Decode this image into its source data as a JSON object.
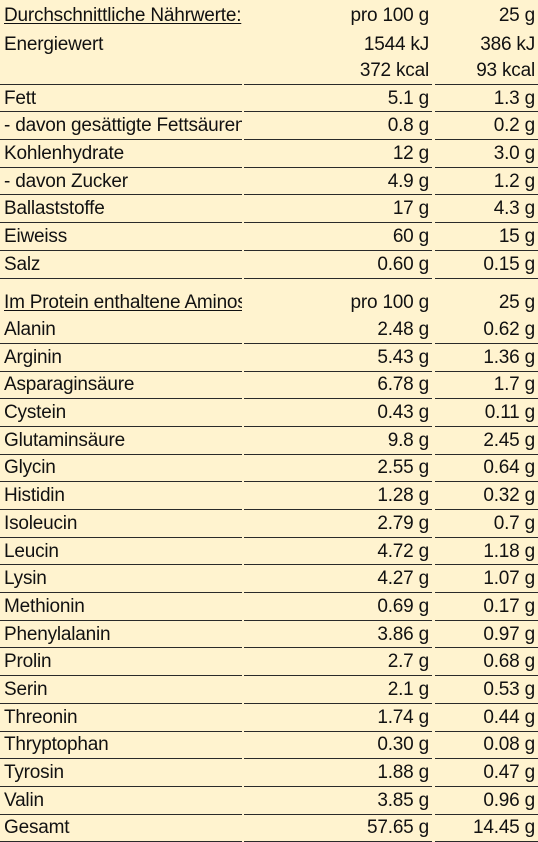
{
  "nutrition": {
    "header": {
      "label": "Durchschnittliche Nährwerte:",
      "col100": "pro 100 g",
      "col25": "25 g"
    },
    "energy": {
      "label": "Energiewert",
      "kj100": "1544 kJ",
      "kj25": "386 kJ",
      "kcal100": "372 kcal",
      "kcal25": "93 kcal"
    },
    "rows": [
      {
        "label": "Fett",
        "v100": "5.1 g",
        "v25": "1.3 g"
      },
      {
        "label": "- davon gesättigte Fettsäuren",
        "v100": "0.8 g",
        "v25": "0.2 g"
      },
      {
        "label": "Kohlenhydrate",
        "v100": "12 g",
        "v25": "3.0 g"
      },
      {
        "label": "- davon Zucker",
        "v100": "4.9 g",
        "v25": "1.2 g"
      },
      {
        "label": "Ballaststoffe",
        "v100": "17 g",
        "v25": "4.3 g"
      },
      {
        "label": "Eiweiss",
        "v100": "60 g",
        "v25": "15 g"
      },
      {
        "label": "Salz",
        "v100": "0.60 g",
        "v25": "0.15 g"
      }
    ]
  },
  "amino": {
    "header": {
      "label": "Im Protein enthaltene Aminosäuren:",
      "col100": "pro 100 g",
      "col25": "25 g"
    },
    "rows": [
      {
        "label": "Alanin",
        "v100": "2.48 g",
        "v25": "0.62 g"
      },
      {
        "label": "Arginin",
        "v100": "5.43 g",
        "v25": "1.36 g"
      },
      {
        "label": "Asparaginsäure",
        "v100": "6.78 g",
        "v25": "1.7 g"
      },
      {
        "label": "Cystein",
        "v100": "0.43 g",
        "v25": "0.11 g"
      },
      {
        "label": "Glutaminsäure",
        "v100": "9.8 g",
        "v25": "2.45 g"
      },
      {
        "label": "Glycin",
        "v100": "2.55 g",
        "v25": "0.64 g"
      },
      {
        "label": "Histidin",
        "v100": "1.28 g",
        "v25": "0.32 g"
      },
      {
        "label": "Isoleucin",
        "v100": "2.79 g",
        "v25": "0.7 g"
      },
      {
        "label": "Leucin",
        "v100": "4.72 g",
        "v25": "1.18 g"
      },
      {
        "label": "Lysin",
        "v100": "4.27 g",
        "v25": "1.07 g"
      },
      {
        "label": "Methionin",
        "v100": "0.69 g",
        "v25": "0.17 g"
      },
      {
        "label": "Phenylalanin",
        "v100": "3.86 g",
        "v25": "0.97 g"
      },
      {
        "label": "Prolin",
        "v100": "2.7 g",
        "v25": "0.68 g"
      },
      {
        "label": "Serin",
        "v100": "2.1 g",
        "v25": "0.53 g"
      },
      {
        "label": "Threonin",
        "v100": "1.74 g",
        "v25": "0.44 g"
      },
      {
        "label": "Thryptophan",
        "v100": "0.30 g",
        "v25": "0.08 g"
      },
      {
        "label": "Tyrosin",
        "v100": "1.88 g",
        "v25": "0.47 g"
      },
      {
        "label": "Valin",
        "v100": "3.85 g",
        "v25": "0.96 g"
      },
      {
        "label": "Gesamt",
        "v100": "57.65 g",
        "v25": "14.45 g"
      }
    ]
  }
}
